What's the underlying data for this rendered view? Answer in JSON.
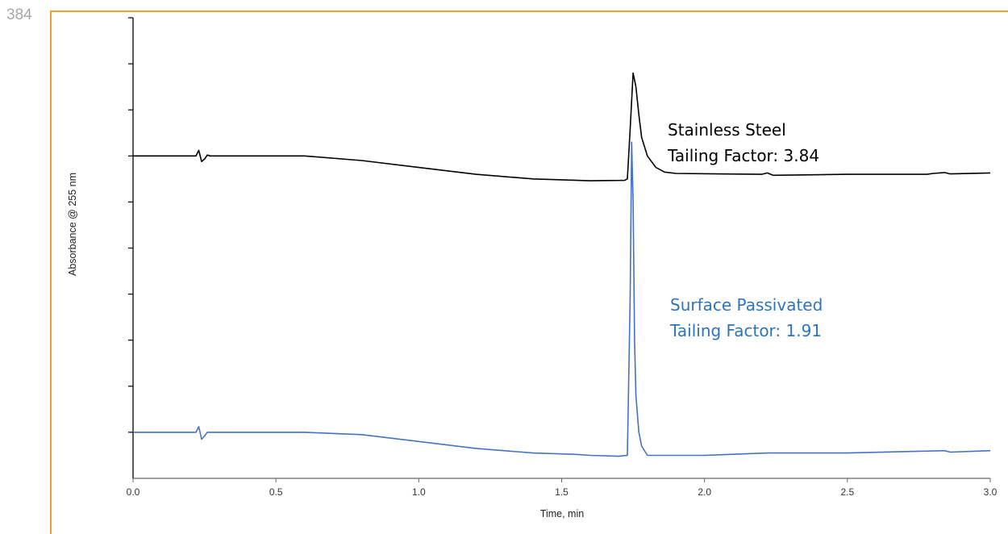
{
  "slide": {
    "number": "384"
  },
  "colors": {
    "frame": "#f0a22e",
    "axis": "#000000",
    "steel": "#000000",
    "passivated": "#4472c4",
    "passivated_label": "#2e75b6"
  },
  "chart_data": {
    "type": "line",
    "xlabel": "Time, min",
    "ylabel": "Absorbance @ 255 nm",
    "xlim": [
      0,
      3.0
    ],
    "ylim": [
      0,
      10
    ],
    "x_ticks": [
      "0.0",
      "0.5",
      "1.0",
      "1.5",
      "2.0",
      "2.5",
      "3.0"
    ],
    "y_tick_count": 10,
    "grid": false,
    "series": [
      {
        "name": "Stainless Steel",
        "color": "#000000",
        "points": [
          [
            0,
            7.0
          ],
          [
            0.22,
            7.0
          ],
          [
            0.23,
            7.12
          ],
          [
            0.24,
            6.88
          ],
          [
            0.25,
            6.93
          ],
          [
            0.26,
            7.02
          ],
          [
            0.27,
            7.0
          ],
          [
            0.6,
            7.0
          ],
          [
            0.8,
            6.9
          ],
          [
            1.0,
            6.75
          ],
          [
            1.2,
            6.6
          ],
          [
            1.4,
            6.5
          ],
          [
            1.6,
            6.46
          ],
          [
            1.72,
            6.47
          ],
          [
            1.73,
            6.5
          ],
          [
            1.74,
            7.6
          ],
          [
            1.75,
            8.8
          ],
          [
            1.76,
            8.5
          ],
          [
            1.77,
            7.9
          ],
          [
            1.78,
            7.4
          ],
          [
            1.8,
            7.0
          ],
          [
            1.83,
            6.75
          ],
          [
            1.86,
            6.65
          ],
          [
            1.9,
            6.62
          ],
          [
            2.2,
            6.6
          ],
          [
            2.22,
            6.63
          ],
          [
            2.24,
            6.58
          ],
          [
            2.5,
            6.6
          ],
          [
            2.78,
            6.6
          ],
          [
            2.8,
            6.62
          ],
          [
            2.84,
            6.64
          ],
          [
            2.86,
            6.61
          ],
          [
            3.0,
            6.63
          ]
        ],
        "label_lines": [
          "Stainless Steel",
          "Tailing Factor: 3.84"
        ]
      },
      {
        "name": "Surface Passivated",
        "color": "#4472c4",
        "points": [
          [
            0,
            1.0
          ],
          [
            0.22,
            1.0
          ],
          [
            0.23,
            1.12
          ],
          [
            0.24,
            0.85
          ],
          [
            0.25,
            0.92
          ],
          [
            0.26,
            1.0
          ],
          [
            0.27,
            1.0
          ],
          [
            0.6,
            1.0
          ],
          [
            0.8,
            0.95
          ],
          [
            1.0,
            0.8
          ],
          [
            1.2,
            0.65
          ],
          [
            1.4,
            0.55
          ],
          [
            1.55,
            0.52
          ],
          [
            1.6,
            0.5
          ],
          [
            1.7,
            0.48
          ],
          [
            1.73,
            0.5
          ],
          [
            1.74,
            4.0
          ],
          [
            1.745,
            7.3
          ],
          [
            1.75,
            6.0
          ],
          [
            1.755,
            3.0
          ],
          [
            1.76,
            1.8
          ],
          [
            1.77,
            1.0
          ],
          [
            1.78,
            0.7
          ],
          [
            1.8,
            0.5
          ],
          [
            1.85,
            0.5
          ],
          [
            2.0,
            0.5
          ],
          [
            2.22,
            0.55
          ],
          [
            2.5,
            0.55
          ],
          [
            2.84,
            0.6
          ],
          [
            2.86,
            0.57
          ],
          [
            3.0,
            0.6
          ]
        ],
        "label_lines": [
          "Surface Passivated",
          "Tailing Factor: 1.91"
        ]
      }
    ]
  }
}
